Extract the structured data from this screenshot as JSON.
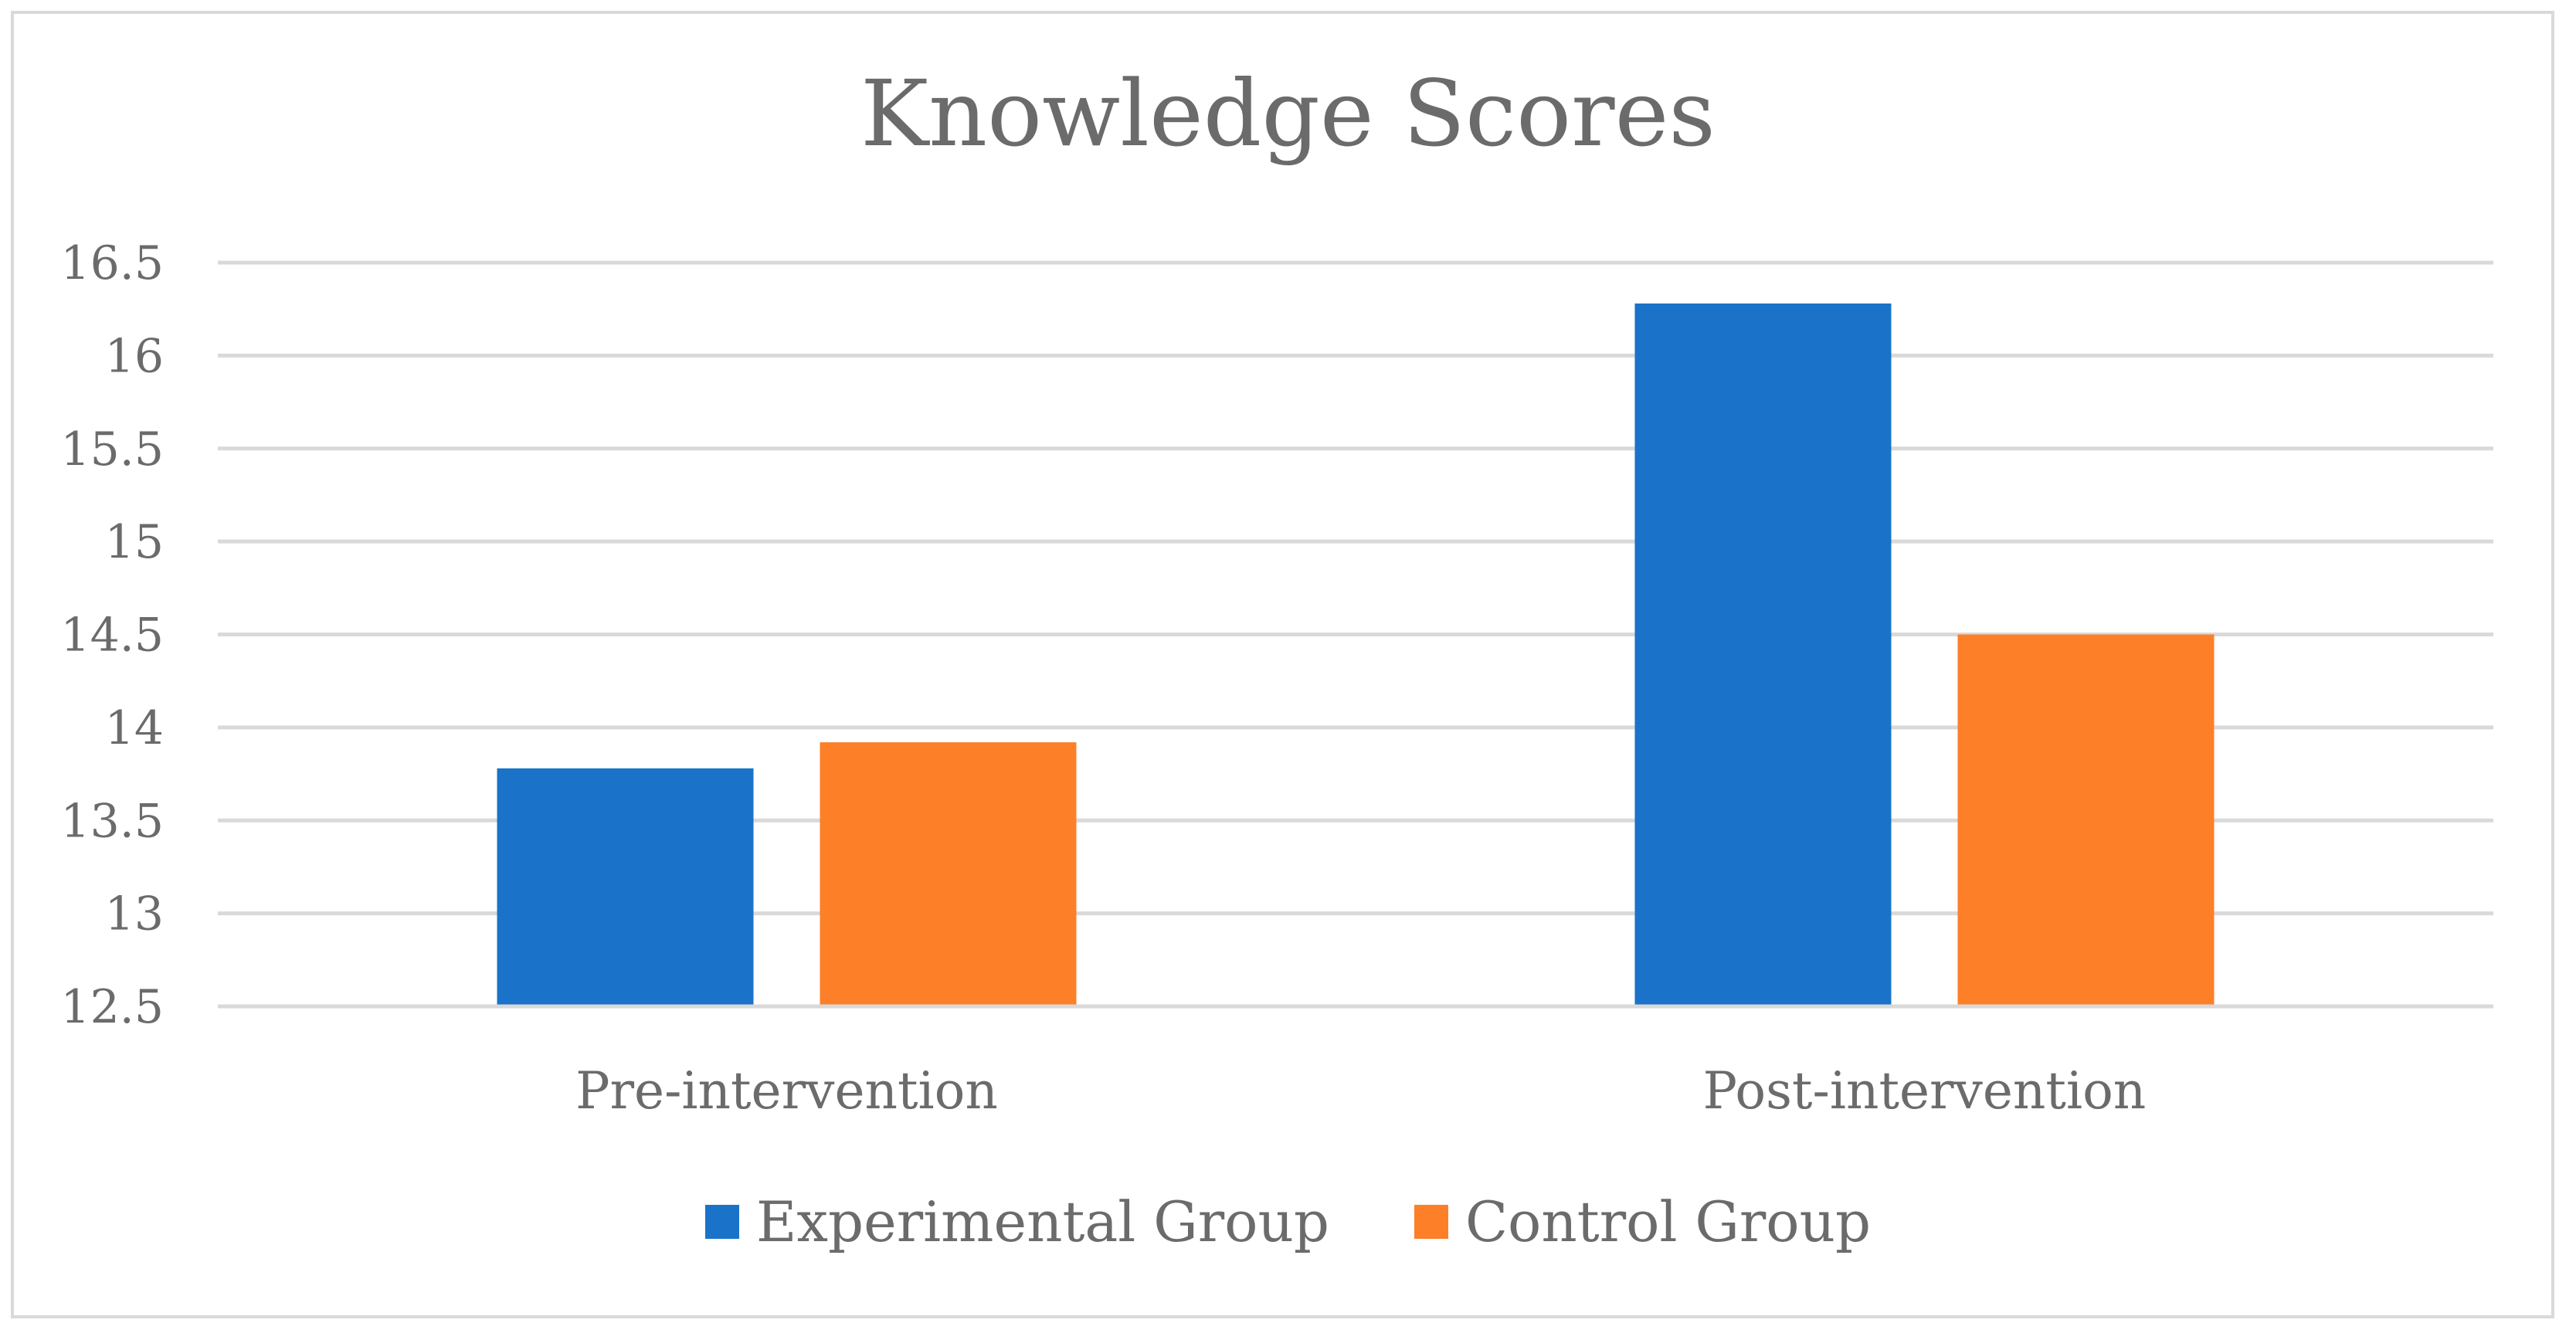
{
  "chart_data": {
    "type": "bar",
    "title": "Knowledge Scores",
    "categories": [
      "Pre-intervention",
      "Post-intervention"
    ],
    "series": [
      {
        "name": "Experimental Group",
        "values": [
          13.78,
          16.28
        ],
        "color": "#1a73c8"
      },
      {
        "name": "Control Group",
        "values": [
          13.92,
          14.5
        ],
        "color": "#fd7f28"
      }
    ],
    "ylim": [
      12.5,
      16.5
    ],
    "yticks": [
      "12.5",
      "13",
      "13.5",
      "14",
      "14.5",
      "15",
      "15.5",
      "16",
      "16.5"
    ],
    "grid": true,
    "legend_position": "bottom",
    "xlabel": "",
    "ylabel": ""
  }
}
